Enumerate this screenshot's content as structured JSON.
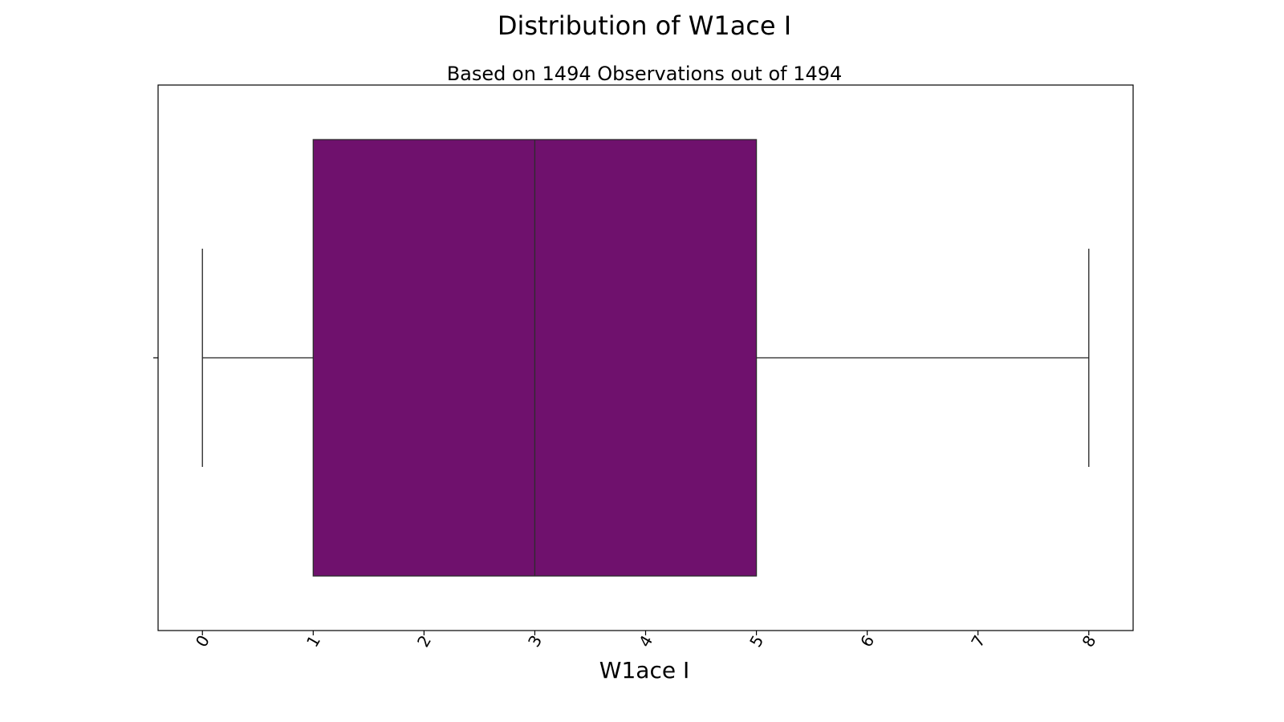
{
  "chart_data": {
    "type": "boxplot",
    "orientation": "horizontal",
    "title": "Distribution of W1ace I",
    "subtitle": "Based on 1494 Observations out of 1494",
    "xlabel": "W1ace I",
    "ylabel": "",
    "xlim": [
      -0.4,
      8.4
    ],
    "x_ticks": [
      0,
      1,
      2,
      3,
      4,
      5,
      6,
      7,
      8
    ],
    "x_tick_labels": [
      "0",
      "1",
      "2",
      "3",
      "4",
      "5",
      "6",
      "7",
      "8"
    ],
    "tick_label_rotation_deg": -60,
    "grid": false,
    "box": {
      "whisker_low": 0,
      "q1": 1,
      "median": 3,
      "q3": 5,
      "whisker_high": 8,
      "outliers": []
    },
    "colors": {
      "box_fill": "#6f116d",
      "box_edge": "#2b2b2b",
      "line": "#222222",
      "frame": "#000000"
    }
  }
}
